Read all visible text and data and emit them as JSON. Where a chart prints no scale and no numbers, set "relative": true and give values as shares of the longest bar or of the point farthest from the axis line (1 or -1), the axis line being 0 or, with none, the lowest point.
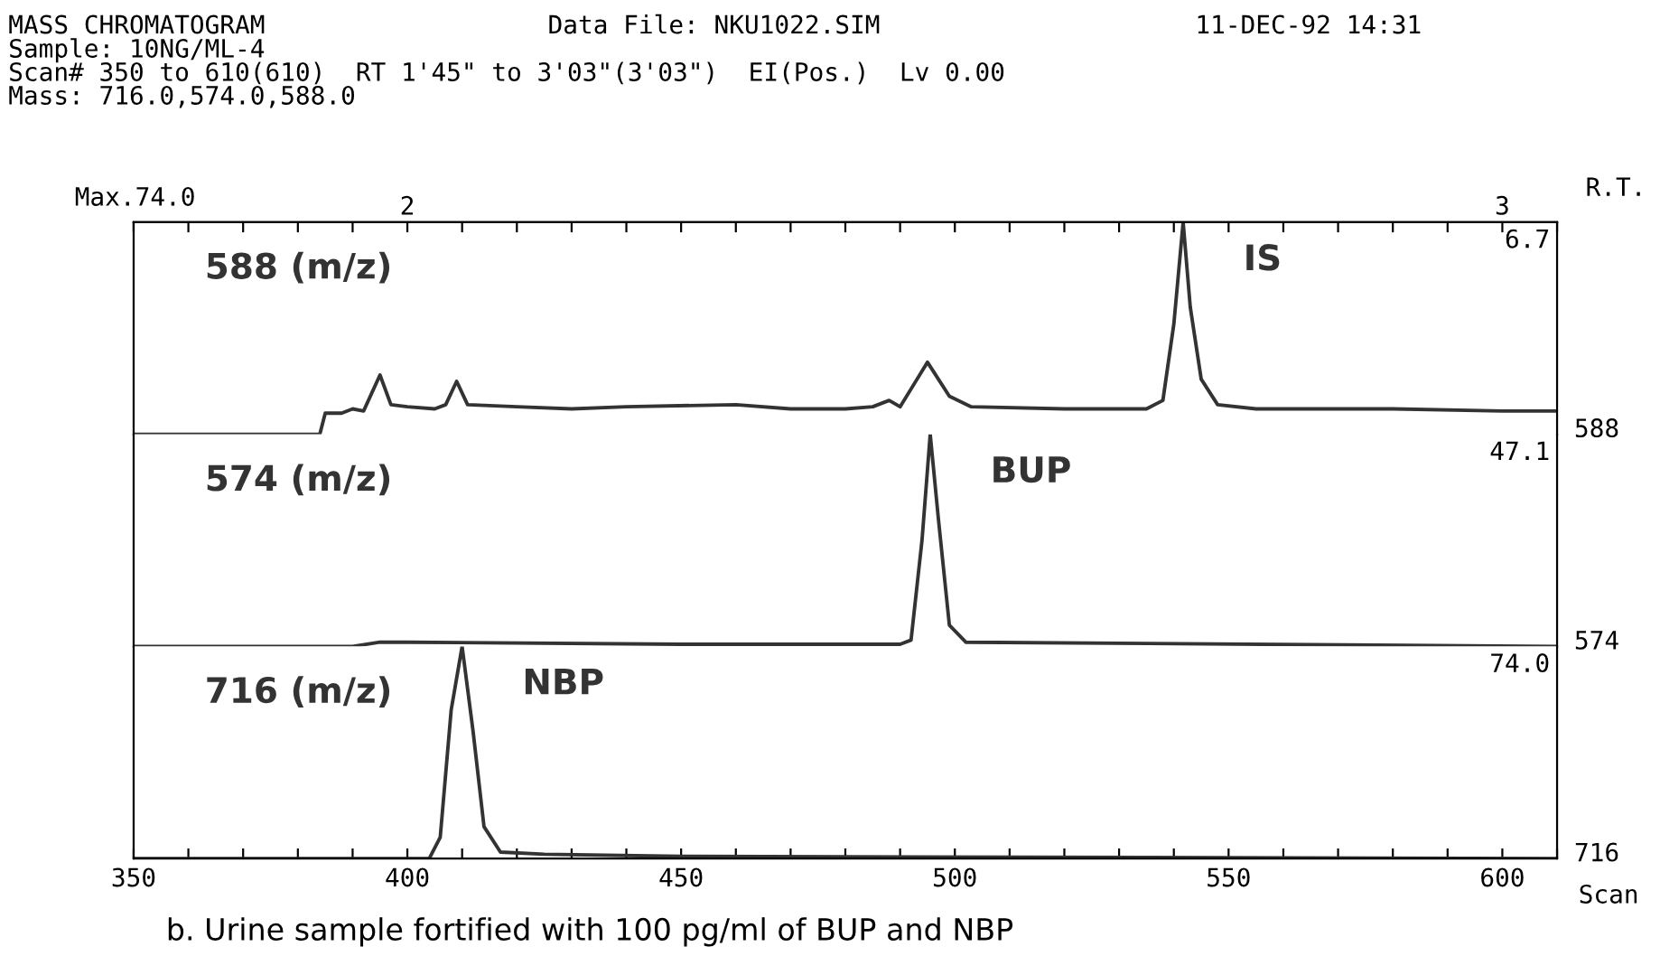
{
  "chart_data": [
    {
      "type": "line",
      "relative": true,
      "title": "MASS CHROMATOGRAM",
      "subtitle": "Sample: 10NG/ML-4\nScan# 350 to 610(610)  RT 1'45\" to 3'03\"(3'03\")  EI(Pos.)  Lv 0.00\nMass: 716.0,574.0,588.0",
      "x2label": "R.T.",
      "xlim": [
        350,
        610
      ],
      "x2lim": [
        1.75,
        3.05
      ],
      "x2ticks": [
        {
          "value": 1.75,
          "label": null
        },
        {
          "value": 1.8,
          "label": null
        },
        {
          "value": 1.85,
          "label": null
        },
        {
          "value": 1.9,
          "label": null
        },
        {
          "value": 1.95,
          "label": null
        },
        2,
        {
          "value": 2.05,
          "label": null
        },
        {
          "value": 2.1,
          "label": null
        },
        {
          "value": 2.15,
          "label": null
        },
        {
          "value": 2.2,
          "label": null
        },
        {
          "value": 2.25,
          "label": null
        },
        {
          "value": 2.3,
          "label": null
        },
        {
          "value": 2.35,
          "label": null
        },
        {
          "value": 2.4,
          "label": null
        },
        {
          "value": 2.45,
          "label": null
        },
        {
          "value": 2.5,
          "label": null
        },
        {
          "value": 2.55,
          "label": null
        },
        {
          "value": 2.6,
          "label": null
        },
        {
          "value": 2.65,
          "label": null
        },
        {
          "value": 2.7,
          "label": null
        },
        {
          "value": 2.75,
          "label": null
        },
        {
          "value": 2.8,
          "label": null
        },
        {
          "value": 2.85,
          "label": null
        },
        {
          "value": 2.9,
          "label": null
        },
        {
          "value": 2.95,
          "label": null
        },
        3,
        {
          "value": 3.05,
          "label": null
        }
      ],
      "tick_labels": false,
      "grid": false,
      "legend": false,
      "annotations": [
        "Data File: NKU1022.SIM",
        "11-DEC-92 14:31",
        "Max.74.0",
        "588 (m/z)",
        "6.7",
        "588",
        {
          "text": "IS",
          "x": 541.7,
          "y": 1
        }
      ],
      "series": [
        {
          "color": "#333333",
          "x": [
            350,
            384,
            385,
            388,
            390,
            392,
            395,
            397,
            400,
            405,
            407,
            409,
            411,
            420,
            430,
            440,
            460,
            470,
            480,
            485,
            488,
            490,
            495,
            499,
            503,
            520,
            535,
            538,
            540,
            541.7,
            543,
            545,
            548,
            555,
            580,
            600,
            610
          ],
          "values": [
            0,
            0,
            0.1,
            0.1,
            0.12,
            0.11,
            0.28,
            0.14,
            0.13,
            0.12,
            0.14,
            0.25,
            0.14,
            0.13,
            0.12,
            0.13,
            0.14,
            0.12,
            0.12,
            0.13,
            0.16,
            0.13,
            0.34,
            0.18,
            0.13,
            0.12,
            0.12,
            0.16,
            0.52,
            1,
            0.6,
            0.26,
            0.14,
            0.12,
            0.12,
            0.11,
            0.11
          ]
        }
      ]
    },
    {
      "type": "line",
      "relative": true,
      "xlim": [
        350,
        610
      ],
      "tick_labels": false,
      "grid": false,
      "legend": false,
      "annotations": [
        "574 (m/z)",
        "47.1",
        "574",
        {
          "text": "BUP",
          "x": 495.5,
          "y": 1
        }
      ],
      "series": [
        {
          "color": "#333333",
          "x": [
            350,
            390,
            395,
            400,
            450,
            490,
            492,
            494,
            495.5,
            497,
            499,
            502,
            610
          ],
          "values": [
            0,
            0,
            0.02,
            0.02,
            0.01,
            0.01,
            0.03,
            0.5,
            1,
            0.6,
            0.1,
            0.02,
            0
          ]
        }
      ]
    },
    {
      "type": "line",
      "relative": true,
      "xlim": [
        350,
        610
      ],
      "xlabel": "Scan",
      "tick_labels": "x",
      "grid": false,
      "legend": false,
      "xticks": [
        350,
        {
          "value": 360,
          "label": null
        },
        {
          "value": 370,
          "label": null
        },
        {
          "value": 380,
          "label": null
        },
        {
          "value": 390,
          "label": null
        },
        400,
        {
          "value": 410,
          "label": null
        },
        {
          "value": 420,
          "label": null
        },
        {
          "value": 430,
          "label": null
        },
        {
          "value": 440,
          "label": null
        },
        450,
        {
          "value": 460,
          "label": null
        },
        {
          "value": 470,
          "label": null
        },
        {
          "value": 480,
          "label": null
        },
        {
          "value": 490,
          "label": null
        },
        500,
        {
          "value": 510,
          "label": null
        },
        {
          "value": 520,
          "label": null
        },
        {
          "value": 530,
          "label": null
        },
        {
          "value": 540,
          "label": null
        },
        550,
        {
          "value": 560,
          "label": null
        },
        {
          "value": 570,
          "label": null
        },
        {
          "value": 580,
          "label": null
        },
        {
          "value": 590,
          "label": null
        },
        600,
        {
          "value": 610,
          "label": null
        }
      ],
      "annotations": [
        "716 (m/z)",
        "74.0",
        "716",
        {
          "text": "NBP",
          "x": 410,
          "y": 1
        },
        "b. Urine sample fortified with 100 pg/ml of BUP and NBP"
      ],
      "series": [
        {
          "color": "#333333",
          "x": [
            350,
            404,
            406,
            408,
            410,
            412,
            414,
            417,
            425,
            450,
            610
          ],
          "values": [
            0,
            0,
            0.1,
            0.7,
            1,
            0.6,
            0.15,
            0.03,
            0.02,
            0.01,
            0
          ]
        }
      ]
    }
  ]
}
